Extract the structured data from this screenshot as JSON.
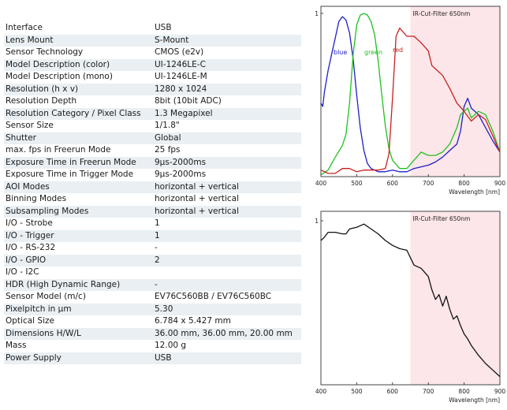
{
  "specs": [
    {
      "label": "Interface",
      "value": "USB"
    },
    {
      "label": "Lens Mount",
      "value": "S-Mount"
    },
    {
      "label": "Sensor Technology",
      "value": "CMOS (e2v)"
    },
    {
      "label": "Model Description (color)",
      "value": "UI-1246LE-C"
    },
    {
      "label": "Model Description (mono)",
      "value": "UI-1246LE-M"
    },
    {
      "label": "Resolution (h x v)",
      "value": "1280 x 1024"
    },
    {
      "label": "Resolution Depth",
      "value": "8bit (10bit ADC)"
    },
    {
      "label": "Resolution Category / Pixel Class",
      "value": "1.3 Megapixel"
    },
    {
      "label": "Sensor Size",
      "value": "1/1.8\""
    },
    {
      "label": "Shutter",
      "value": "Global"
    },
    {
      "label": "max. fps in Freerun Mode",
      "value": "25 fps"
    },
    {
      "label": "Exposure Time in Freerun Mode",
      "value": "9µs-2000ms"
    },
    {
      "label": "Exposure Time in Trigger Mode",
      "value": "9µs-2000ms"
    },
    {
      "label": "AOI Modes",
      "value": "horizontal + vertical"
    },
    {
      "label": "Binning Modes",
      "value": "horizontal + vertical"
    },
    {
      "label": "Subsampling Modes",
      "value": "horizontal + vertical"
    },
    {
      "label": "I/O - Strobe",
      "value": "1"
    },
    {
      "label": "I/O - Trigger",
      "value": "1"
    },
    {
      "label": "I/O - RS-232",
      "value": "-"
    },
    {
      "label": "I/O - GPIO",
      "value": "2"
    },
    {
      "label": "I/O - I2C",
      "value": ""
    },
    {
      "label": "HDR (High Dynamic Range)",
      "value": "-"
    },
    {
      "label": "Sensor Model (m/c)",
      "value": "EV76C560BB / EV76C560BC"
    },
    {
      "label": "Pixelpitch in µm",
      "value": "5.30"
    },
    {
      "label": "Optical Size",
      "value": "6.784 x 5.427 mm"
    },
    {
      "label": "Dimensions H/W/L",
      "value": "36.00 mm, 36.00 mm, 20.00 mm"
    },
    {
      "label": "Mass",
      "value": "12.00 g"
    },
    {
      "label": "Power Supply",
      "value": "USB"
    }
  ],
  "chart_data": [
    {
      "type": "line",
      "title": "",
      "xlabel": "Wavelength [nm]",
      "ylabel": "",
      "xlim": [
        400,
        900
      ],
      "ylim": [
        0,
        1
      ],
      "x_ticks": [
        "400",
        "500",
        "600",
        "700",
        "800",
        "900"
      ],
      "y_ticks": [
        "1"
      ],
      "grid": false,
      "annotation": {
        "label": "IR-Cut-Filter 650nm",
        "x_start": 650,
        "x_end": 900,
        "color": "#fde6e9"
      },
      "series": [
        {
          "name": "blue",
          "color": "#1f1fc8",
          "x": [
            400,
            405,
            410,
            420,
            430,
            440,
            450,
            460,
            470,
            480,
            490,
            500,
            510,
            520,
            530,
            540,
            560,
            580,
            600,
            620,
            640,
            660,
            680,
            700,
            720,
            740,
            760,
            780,
            790,
            800,
            810,
            820,
            840,
            860,
            880,
            900
          ],
          "y": [
            0.45,
            0.43,
            0.52,
            0.65,
            0.75,
            0.85,
            0.95,
            0.98,
            0.96,
            0.88,
            0.72,
            0.5,
            0.3,
            0.16,
            0.08,
            0.05,
            0.03,
            0.03,
            0.04,
            0.03,
            0.03,
            0.05,
            0.06,
            0.07,
            0.09,
            0.12,
            0.16,
            0.2,
            0.28,
            0.43,
            0.48,
            0.42,
            0.38,
            0.3,
            0.22,
            0.15
          ]
        },
        {
          "name": "green",
          "color": "#20c020",
          "x": [
            400,
            420,
            440,
            460,
            470,
            480,
            490,
            500,
            510,
            520,
            530,
            540,
            550,
            560,
            570,
            580,
            590,
            600,
            620,
            640,
            660,
            680,
            700,
            720,
            740,
            760,
            780,
            790,
            800,
            810,
            820,
            840,
            860,
            880,
            900
          ],
          "y": [
            0.01,
            0.04,
            0.12,
            0.19,
            0.26,
            0.45,
            0.75,
            0.93,
            0.99,
            1.0,
            0.99,
            0.95,
            0.87,
            0.71,
            0.5,
            0.31,
            0.17,
            0.1,
            0.05,
            0.05,
            0.1,
            0.15,
            0.13,
            0.13,
            0.15,
            0.2,
            0.3,
            0.38,
            0.4,
            0.42,
            0.36,
            0.4,
            0.38,
            0.28,
            0.15
          ]
        },
        {
          "name": "red",
          "color": "#c82020",
          "x": [
            400,
            420,
            440,
            460,
            480,
            500,
            520,
            540,
            560,
            580,
            590,
            600,
            610,
            620,
            640,
            660,
            680,
            700,
            710,
            720,
            740,
            760,
            780,
            800,
            820,
            840,
            860,
            880,
            900
          ],
          "y": [
            0.04,
            0.02,
            0.02,
            0.05,
            0.05,
            0.03,
            0.04,
            0.04,
            0.04,
            0.05,
            0.14,
            0.48,
            0.86,
            0.91,
            0.86,
            0.86,
            0.82,
            0.77,
            0.68,
            0.66,
            0.62,
            0.54,
            0.45,
            0.4,
            0.34,
            0.38,
            0.35,
            0.25,
            0.15
          ]
        }
      ]
    },
    {
      "type": "line",
      "title": "",
      "xlabel": "Wavelength [nm]",
      "ylabel": "",
      "xlim": [
        400,
        900
      ],
      "ylim": [
        0,
        1
      ],
      "x_ticks": [
        "400",
        "500",
        "600",
        "700",
        "800",
        "900"
      ],
      "y_ticks": [
        "1"
      ],
      "grid": false,
      "annotation": {
        "label": "IR-Cut-Filter 650nm",
        "x_start": 650,
        "x_end": 900,
        "color": "#fde6e9"
      },
      "series": [
        {
          "color": "#111111",
          "x": [
            400,
            410,
            420,
            440,
            460,
            470,
            480,
            500,
            520,
            540,
            560,
            580,
            600,
            620,
            640,
            660,
            680,
            700,
            710,
            720,
            730,
            740,
            750,
            760,
            770,
            780,
            790,
            800,
            810,
            820,
            840,
            860,
            880,
            900
          ],
          "y": [
            0.88,
            0.9,
            0.93,
            0.93,
            0.92,
            0.92,
            0.95,
            0.96,
            0.98,
            0.95,
            0.92,
            0.88,
            0.85,
            0.83,
            0.82,
            0.73,
            0.71,
            0.66,
            0.58,
            0.52,
            0.55,
            0.48,
            0.54,
            0.46,
            0.4,
            0.42,
            0.36,
            0.31,
            0.28,
            0.24,
            0.18,
            0.13,
            0.09,
            0.05
          ]
        }
      ]
    }
  ]
}
